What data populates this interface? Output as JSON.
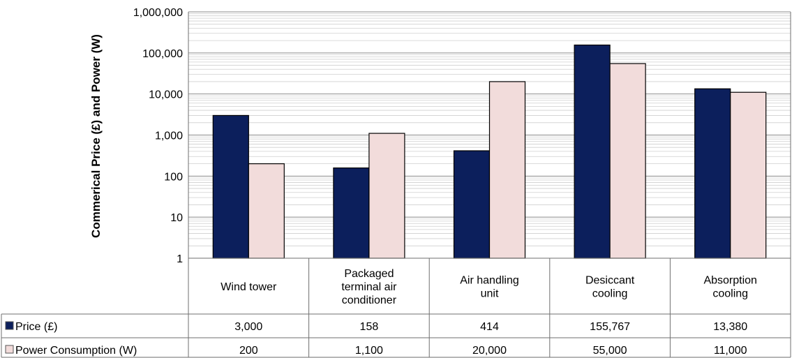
{
  "chart_data": {
    "type": "bar",
    "title": "",
    "xlabel": "",
    "ylabel": "Commerical Price (£) and Power (W)",
    "yscale": "log",
    "ylim": [
      1,
      1000000
    ],
    "yticks": [
      1,
      10,
      100,
      1000,
      10000,
      100000,
      1000000
    ],
    "ytick_labels": [
      "1",
      "10",
      "100",
      "1,000",
      "10,000",
      "100,000",
      "1,000,000"
    ],
    "grid": true,
    "legend": "data-table-below",
    "categories": [
      [
        "Wind tower"
      ],
      [
        "Packaged",
        "terminal air",
        "conditioner"
      ],
      [
        "Air handling",
        "unit"
      ],
      [
        "Desiccant",
        "cooling"
      ],
      [
        "Absorption",
        "cooling"
      ]
    ],
    "series": [
      {
        "name": "Price (£)",
        "color": "#0c1f5c",
        "values": [
          3000,
          158,
          414,
          155767,
          13380
        ],
        "labels": [
          "3,000",
          "158",
          "414",
          "155,767",
          "13,380"
        ]
      },
      {
        "name": "Power Consumption (W)",
        "color": "#f2dcdb",
        "values": [
          200,
          1100,
          20000,
          55000,
          11000
        ],
        "labels": [
          "200",
          "1,100",
          "20,000",
          "55,000",
          "11,000"
        ]
      }
    ]
  }
}
